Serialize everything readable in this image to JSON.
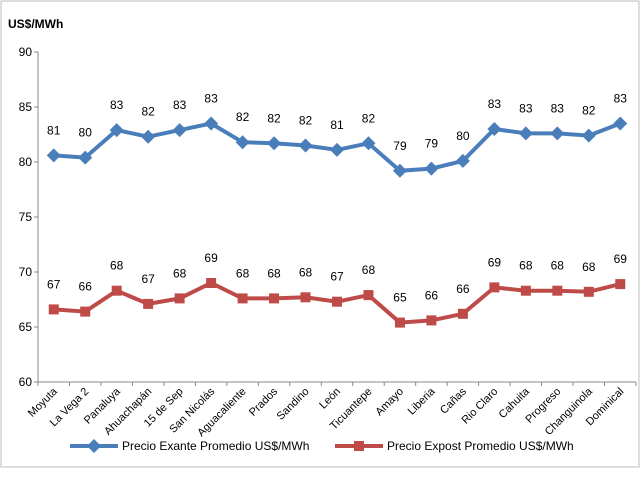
{
  "chart_data": {
    "type": "line",
    "y_label": "US$/MWh",
    "categories": [
      "Moyuta",
      "La Vega 2",
      "Panaluya",
      "Ahuachapán",
      "15 de Sep",
      "San Nicolás",
      "Aguacaliente",
      "Prados",
      "Sandino",
      "León",
      "Ticuantepe",
      "Amayo",
      "Liberia",
      "Cañas",
      "Rio Claro",
      "Cahuita",
      "Progreso",
      "Changuinola",
      "Dominical"
    ],
    "series": [
      {
        "name": "Precio Exante Promedio US$/MWh",
        "color": "#4a7ebb",
        "marker": "diamond",
        "values": [
          80.6,
          80.4,
          82.9,
          82.3,
          82.9,
          83.5,
          81.8,
          81.7,
          81.5,
          81.1,
          81.7,
          79.2,
          79.4,
          80.1,
          83.0,
          82.6,
          82.6,
          82.4,
          83.5
        ],
        "value_labels": [
          "81",
          "80",
          "83",
          "82",
          "83",
          "83",
          "82",
          "82",
          "82",
          "81",
          "82",
          "79",
          "79",
          "80",
          "83",
          "83",
          "83",
          "82",
          "83"
        ]
      },
      {
        "name": "Precio Expost Promedio US$/MWh",
        "color": "#be4b48",
        "marker": "square",
        "values": [
          66.6,
          66.4,
          68.3,
          67.1,
          67.6,
          69.0,
          67.6,
          67.6,
          67.7,
          67.3,
          67.9,
          65.4,
          65.6,
          66.2,
          68.6,
          68.3,
          68.3,
          68.2,
          68.9
        ],
        "value_labels": [
          "67",
          "66",
          "68",
          "67",
          "68",
          "69",
          "68",
          "68",
          "68",
          "67",
          "68",
          "65",
          "66",
          "66",
          "69",
          "68",
          "68",
          "68",
          "69"
        ]
      }
    ],
    "ylim": [
      60,
      90
    ],
    "yticks": [
      60,
      65,
      70,
      75,
      80,
      85,
      90
    ],
    "grid": false,
    "legend": "bottom"
  }
}
